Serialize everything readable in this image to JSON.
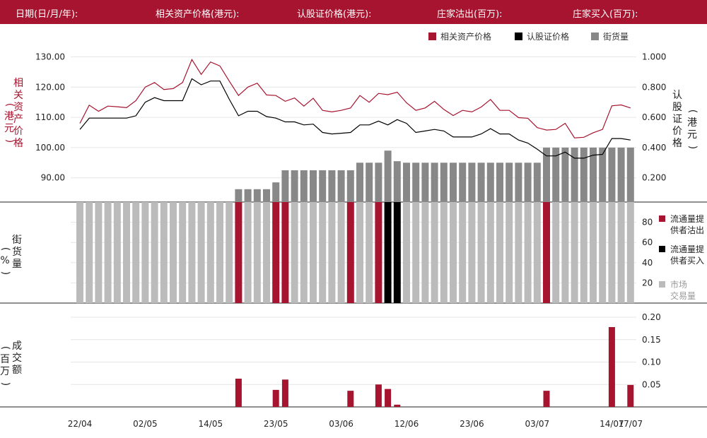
{
  "header": {
    "date": "日期(日/月/年):",
    "underlying_price": "相关资产价格(港元):",
    "warrant_price": "认股证价格(港元):",
    "issuer_sell": "庄家沽出(百万):",
    "issuer_buy": "庄家买入(百万):"
  },
  "colors": {
    "brand": "#a6142f",
    "underlying": "#a6142f",
    "warrant": "#000000",
    "outstanding": "#888888",
    "market": "#bbbbbb"
  },
  "legend_top": [
    {
      "label": "相关资产价格",
      "color": "#a6142f"
    },
    {
      "label": "认股证价格",
      "color": "#000000"
    },
    {
      "label": "街货量",
      "color": "#888888"
    }
  ],
  "legend_mid": [
    {
      "line1": "流通量提",
      "line2": "供者沽出",
      "color": "#a6142f"
    },
    {
      "line1": "流通量提",
      "line2": "供者买入",
      "color": "#000000"
    },
    {
      "line1": "市场",
      "line2": "交易量",
      "color": "#bbbbbb"
    }
  ],
  "axis_titles": {
    "left_top_main": "相关资产价格",
    "left_top_unit": "港元",
    "right_top_main": "认股证价格",
    "right_top_unit": "港元",
    "left_mid_main": "街货量",
    "left_mid_unit": "%",
    "left_bot_main": "成交额",
    "left_bot_unit": "百万"
  },
  "chart_data": {
    "type": "line",
    "x_labels": [
      "22/04",
      "02/05",
      "14/05",
      "23/05",
      "03/06",
      "12/06",
      "23/06",
      "03/07",
      "14/07",
      "17/07"
    ],
    "x_label_index": [
      0,
      7,
      14,
      21,
      28,
      35,
      42,
      49,
      57,
      59
    ],
    "left_axis": {
      "ticks": [
        130,
        120,
        110,
        100,
        90
      ],
      "tick_labels": [
        "130.00",
        "120.00",
        "110.00",
        "100.00",
        "90.00"
      ],
      "range": [
        82,
        131.5
      ]
    },
    "right_axis": {
      "ticks": [
        1.0,
        0.8,
        0.6,
        0.4,
        0.2
      ],
      "tick_labels": [
        "1.000",
        "0.800",
        "0.600",
        "0.400",
        "0.200"
      ],
      "range": [
        0.04,
        1.03
      ]
    },
    "underlying_price": [
      108,
      114,
      112,
      113.7,
      113.5,
      113.2,
      115.5,
      120,
      121.5,
      119.2,
      119.5,
      121.5,
      129.1,
      124.2,
      128.3,
      127,
      122,
      117.2,
      120,
      121.3,
      117.4,
      117.2,
      115.3,
      116.4,
      113.7,
      116.3,
      112.3,
      111.8,
      112.3,
      113.1,
      117.2,
      115,
      117.9,
      117.5,
      118.3,
      114.8,
      112.3,
      113.1,
      115.3,
      112.6,
      110.6,
      112.3,
      111.8,
      113.4,
      115.9,
      112.3,
      112.3,
      109.9,
      109.7,
      106.6,
      105.8,
      106,
      108,
      103.2,
      103.4,
      104.9,
      106,
      113.8,
      114.1,
      113.1
    ],
    "warrant_price": [
      0.52,
      0.595,
      0.595,
      0.595,
      0.595,
      0.595,
      0.61,
      0.7,
      0.73,
      0.71,
      0.71,
      0.71,
      0.855,
      0.815,
      0.84,
      0.84,
      0.72,
      0.61,
      0.64,
      0.64,
      0.605,
      0.595,
      0.57,
      0.57,
      0.55,
      0.555,
      0.5,
      0.49,
      0.495,
      0.5,
      0.55,
      0.55,
      0.575,
      0.55,
      0.585,
      0.56,
      0.5,
      0.51,
      0.52,
      0.51,
      0.47,
      0.47,
      0.47,
      0.49,
      0.525,
      0.49,
      0.49,
      0.45,
      0.43,
      0.39,
      0.345,
      0.345,
      0.37,
      0.33,
      0.33,
      0.35,
      0.355,
      0.46,
      0.46,
      0.45
    ],
    "outstanding": [
      0,
      0,
      0,
      0,
      0,
      0,
      0,
      0,
      0,
      0,
      0,
      0,
      0,
      0,
      0,
      0,
      0,
      0.125,
      0.125,
      0.125,
      0.125,
      0.17,
      0.25,
      0.25,
      0.25,
      0.25,
      0.25,
      0.25,
      0.25,
      0.25,
      0.3,
      0.3,
      0.3,
      0.38,
      0.31,
      0.3,
      0.3,
      0.3,
      0.3,
      0.3,
      0.3,
      0.3,
      0.3,
      0.3,
      0.3,
      0.3,
      0.3,
      0.3,
      0.3,
      0.3,
      0.4,
      0.4,
      0.4,
      0.4,
      0.4,
      0.4,
      0.4,
      0.4,
      0.4,
      0.4
    ],
    "middle_axis": {
      "ticks": [
        80,
        60,
        40,
        20
      ],
      "range": [
        0,
        100
      ]
    },
    "middle_bar_category": [
      "m",
      "m",
      "m",
      "m",
      "m",
      "m",
      "m",
      "m",
      "m",
      "m",
      "m",
      "m",
      "m",
      "m",
      "m",
      "m",
      "m",
      "s",
      "m",
      "m",
      "m",
      "s",
      "s",
      "m",
      "m",
      "m",
      "m",
      "m",
      "m",
      "s",
      "m",
      "m",
      "s",
      "b",
      "b",
      "m",
      "m",
      "m",
      "m",
      "m",
      "m",
      "m",
      "m",
      "m",
      "m",
      "m",
      "m",
      "m",
      "m",
      "m",
      "s",
      "m",
      "m",
      "m",
      "m",
      "m",
      "m",
      "m",
      "m",
      "m"
    ],
    "bottom_axis": {
      "ticks": [
        0.2,
        0.15,
        0.1,
        0.05
      ],
      "tick_labels": [
        "0.20",
        "0.15",
        "0.10",
        "0.05"
      ],
      "range": [
        0,
        0.2
      ]
    },
    "turnover": [
      0,
      0,
      0,
      0,
      0,
      0,
      0,
      0,
      0,
      0,
      0,
      0,
      0,
      0,
      0,
      0,
      0,
      0.063,
      0,
      0,
      0,
      0.038,
      0.061,
      0,
      0,
      0,
      0,
      0,
      0,
      0.036,
      0,
      0,
      0.05,
      0.04,
      0.005,
      0,
      0,
      0,
      0,
      0,
      0,
      0,
      0,
      0,
      0,
      0,
      0,
      0,
      0,
      0,
      0.036,
      0,
      0,
      0,
      0,
      0,
      0,
      0.178,
      0,
      0.049
    ]
  }
}
